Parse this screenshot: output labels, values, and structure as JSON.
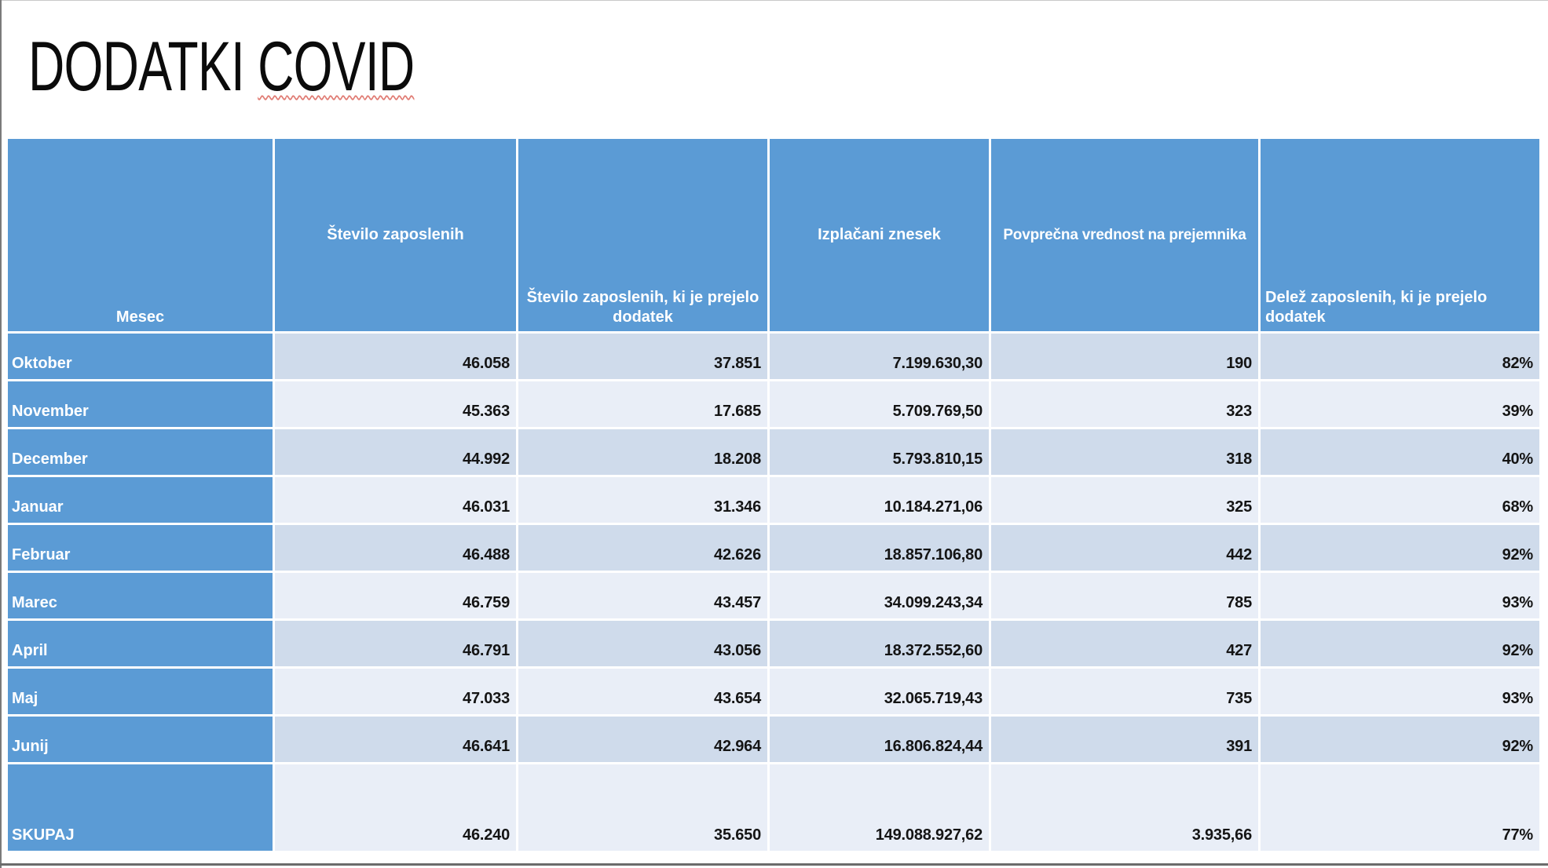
{
  "title": {
    "full": "DODATKI COVID",
    "word1": "DODATKI",
    "word2": "COVID"
  },
  "table": {
    "columns": [
      "Mesec",
      "Število zaposlenih",
      "Število zaposlenih, ki je prejelo dodatek",
      "Izplačani znesek",
      "Povprečna vrednost na prejemnika",
      "Delež zaposlenih, ki je prejelo dodatek"
    ],
    "rows": [
      {
        "month": "Oktober",
        "employees": "46.058",
        "recipients": "37.851",
        "amount": "7.199.630,30",
        "average": "190",
        "share": "82%"
      },
      {
        "month": "November",
        "employees": "45.363",
        "recipients": "17.685",
        "amount": "5.709.769,50",
        "average": "323",
        "share": "39%"
      },
      {
        "month": "December",
        "employees": "44.992",
        "recipients": "18.208",
        "amount": "5.793.810,15",
        "average": "318",
        "share": "40%"
      },
      {
        "month": "Januar",
        "employees": "46.031",
        "recipients": "31.346",
        "amount": "10.184.271,06",
        "average": "325",
        "share": "68%"
      },
      {
        "month": "Februar",
        "employees": "46.488",
        "recipients": "42.626",
        "amount": "18.857.106,80",
        "average": "442",
        "share": "92%"
      },
      {
        "month": "Marec",
        "employees": "46.759",
        "recipients": "43.457",
        "amount": "34.099.243,34",
        "average": "785",
        "share": "93%"
      },
      {
        "month": "April",
        "employees": "46.791",
        "recipients": "43.056",
        "amount": "18.372.552,60",
        "average": "427",
        "share": "92%"
      },
      {
        "month": "Maj",
        "employees": "47.033",
        "recipients": "43.654",
        "amount": "32.065.719,43",
        "average": "735",
        "share": "93%"
      },
      {
        "month": "Junij",
        "employees": "46.641",
        "recipients": "42.964",
        "amount": "16.806.824,44",
        "average": "391",
        "share": "92%"
      },
      {
        "month": "SKUPAJ",
        "employees": "46.240",
        "recipients": "35.650",
        "amount": "149.088.927,62",
        "average": "3.935,66",
        "share": "77%"
      }
    ]
  },
  "colors": {
    "header_blue": "#5B9BD5",
    "band_dark": "#CFDBEB",
    "band_light": "#E9EEF7",
    "title_text": "#0B0B0B",
    "spellcheck_squiggle": "#E07A72"
  }
}
